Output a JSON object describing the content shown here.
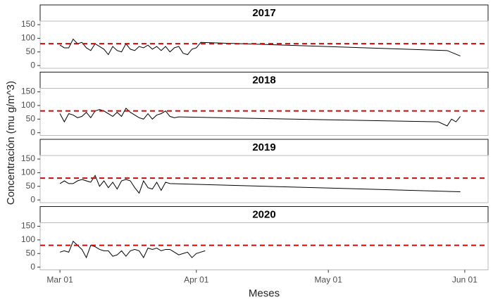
{
  "chart_data": [
    {
      "type": "line",
      "title": "2017",
      "x": [
        0,
        1,
        2,
        3,
        4,
        5,
        6,
        7,
        8,
        9,
        10,
        11,
        12,
        13,
        14,
        15,
        16,
        17,
        18,
        19,
        20,
        21,
        22,
        23,
        24,
        25,
        26,
        27,
        28,
        29,
        30,
        31,
        32,
        88,
        91
      ],
      "values": [
        75,
        65,
        65,
        97,
        80,
        85,
        65,
        55,
        80,
        70,
        60,
        40,
        70,
        55,
        50,
        80,
        60,
        55,
        70,
        65,
        75,
        60,
        70,
        55,
        70,
        50,
        65,
        70,
        45,
        40,
        60,
        65,
        85,
        55,
        35
      ],
      "color": "#000000",
      "refline": 80,
      "refline_color": "#e00000",
      "xlim": [
        -4.5,
        97.3
      ],
      "ylim": [
        -10,
        163
      ],
      "yticks": [
        0,
        50,
        100,
        150
      ]
    },
    {
      "type": "line",
      "title": "2018",
      "x": [
        0,
        1,
        2,
        3,
        4,
        5,
        6,
        7,
        8,
        9,
        10,
        11,
        12,
        13,
        14,
        15,
        16,
        17,
        18,
        19,
        20,
        21,
        22,
        23,
        24,
        25,
        26,
        27,
        86,
        88,
        89,
        90,
        91
      ],
      "values": [
        70,
        40,
        70,
        65,
        55,
        60,
        75,
        55,
        80,
        85,
        80,
        70,
        60,
        75,
        60,
        90,
        75,
        65,
        55,
        50,
        70,
        50,
        65,
        70,
        80,
        60,
        55,
        58,
        40,
        25,
        50,
        40,
        60
      ],
      "color": "#000000",
      "refline": 80,
      "refline_color": "#e00000",
      "xlim": [
        -4.5,
        97.3
      ],
      "ylim": [
        -10,
        163
      ],
      "yticks": [
        0,
        50,
        100,
        150
      ]
    },
    {
      "type": "line",
      "title": "2019",
      "x": [
        0,
        1,
        2,
        3,
        4,
        5,
        6,
        7,
        8,
        9,
        10,
        11,
        12,
        13,
        14,
        15,
        16,
        17,
        18,
        19,
        20,
        21,
        22,
        23,
        24,
        25,
        91
      ],
      "values": [
        60,
        70,
        60,
        60,
        70,
        75,
        70,
        65,
        90,
        50,
        70,
        45,
        65,
        40,
        70,
        75,
        70,
        45,
        25,
        70,
        45,
        40,
        65,
        35,
        65,
        60,
        30
      ],
      "color": "#000000",
      "refline": 80,
      "refline_color": "#e00000",
      "xlim": [
        -4.5,
        97.3
      ],
      "ylim": [
        -10,
        163
      ],
      "yticks": [
        0,
        50,
        100,
        150
      ]
    },
    {
      "type": "line",
      "title": "2020",
      "x": [
        0,
        1,
        2,
        3,
        4,
        5,
        6,
        7,
        8,
        9,
        10,
        11,
        12,
        13,
        14,
        15,
        16,
        17,
        18,
        19,
        20,
        21,
        22,
        23,
        24,
        25,
        26,
        27,
        28,
        29,
        30,
        31,
        32,
        33
      ],
      "values": [
        55,
        60,
        55,
        95,
        80,
        65,
        35,
        80,
        75,
        65,
        60,
        60,
        40,
        45,
        60,
        40,
        60,
        65,
        60,
        35,
        70,
        65,
        70,
        60,
        65,
        65,
        55,
        45,
        50,
        55,
        35,
        50,
        55,
        60
      ],
      "color": "#000000",
      "refline": 80,
      "refline_color": "#e00000",
      "xlim": [
        -4.5,
        97.3
      ],
      "ylim": [
        -10,
        163
      ],
      "yticks": [
        0,
        50,
        100,
        150
      ],
      "xticks": [
        {
          "value": 0,
          "label": "Mar 01"
        },
        {
          "value": 31,
          "label": "Apr 01"
        },
        {
          "value": 61,
          "label": "May 01"
        },
        {
          "value": 92,
          "label": "Jun 01"
        }
      ],
      "xlabel": "Meses",
      "ylabel": "Concentración (mu g/m^3)"
    }
  ]
}
